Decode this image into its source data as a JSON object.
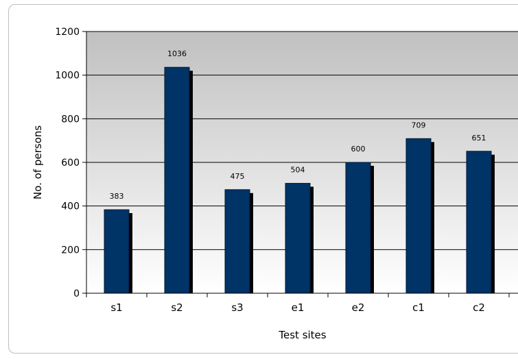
{
  "chart_data": {
    "type": "bar",
    "title": "",
    "xlabel": "Test sites",
    "ylabel": "No. of persons",
    "categories": [
      "s1",
      "s2",
      "s3",
      "e1",
      "e2",
      "c1",
      "c2"
    ],
    "values": [
      383,
      1036,
      475,
      504,
      600,
      709,
      651
    ],
    "ylim": [
      0,
      1200
    ],
    "yticks": [
      0,
      200,
      400,
      600,
      800,
      1000,
      1200
    ],
    "grid": true,
    "legend": "none",
    "colors": {
      "bar": "#003366",
      "shadow": "#000000",
      "plot_bg_top": "#c0c0c0",
      "plot_bg_bottom": "#ffffff"
    }
  }
}
